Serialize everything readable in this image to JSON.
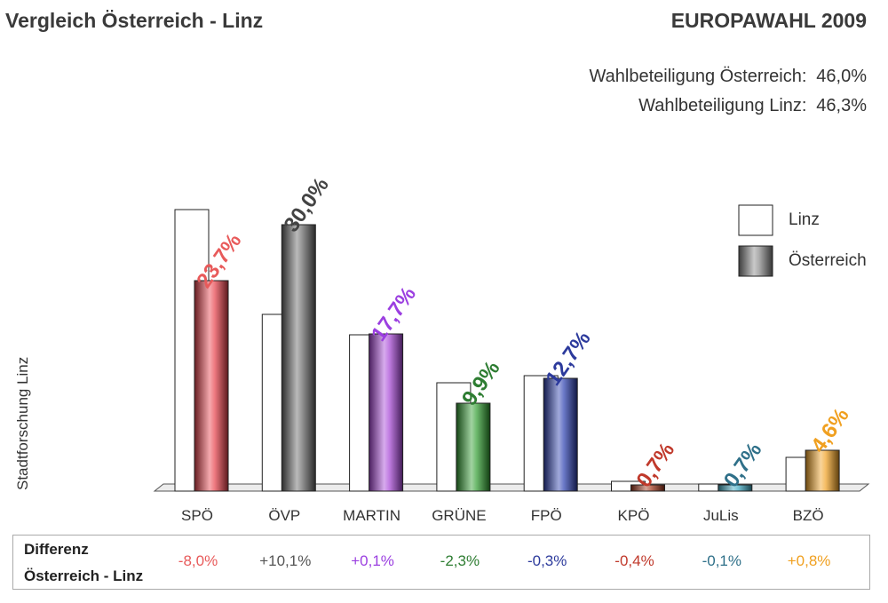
{
  "header": {
    "title_left": "Vergleich Österreich - Linz",
    "title_right": "EUROPAWAHL 2009"
  },
  "turnout": {
    "austria_label": "Wahlbeteiligung Österreich:",
    "austria_value": "46,0%",
    "linz_label": "Wahlbeteiligung Linz:",
    "linz_value": "46,3%"
  },
  "source_label": "Stadtforschung Linz",
  "legend": {
    "linz": "Linz",
    "austria": "Österreich"
  },
  "differences": {
    "label_line1": "Differenz",
    "label_line2": "Österreich - Linz",
    "values": [
      "-8,0%",
      "+10,1%",
      "+0,1%",
      "-2,3%",
      "-0,3%",
      "-0,4%",
      "-0,1%",
      "+0,8%"
    ]
  },
  "chart_data": {
    "type": "bar",
    "categories": [
      "SPÖ",
      "ÖVP",
      "MARTIN",
      "GRÜNE",
      "FPÖ",
      "KPÖ",
      "JuLis",
      "BZÖ"
    ],
    "series": [
      {
        "name": "Linz",
        "values": [
          31.7,
          19.9,
          17.6,
          12.2,
          13.0,
          1.1,
          0.8,
          3.8
        ]
      },
      {
        "name": "Österreich",
        "values": [
          23.7,
          30.0,
          17.7,
          9.9,
          12.7,
          0.7,
          0.7,
          4.6
        ]
      }
    ],
    "value_labels": [
      "23,7%",
      "30,0%",
      "17,7%",
      "9,9%",
      "12,7%",
      "0,7%",
      "0,7%",
      "4,6%"
    ],
    "colors": [
      "#e8404a",
      "#666666",
      "#a645d6",
      "#2e9c2e",
      "#2c3fb0",
      "#a0351a",
      "#3aa6c0",
      "#f0a020"
    ],
    "label_colors": [
      "#e85a5a",
      "#444444",
      "#9b3fe0",
      "#2e7d32",
      "#2c3a9c",
      "#c0392b",
      "#2f7089",
      "#f0a020"
    ],
    "diff_colors": [
      "#e85a5a",
      "#555555",
      "#9b3fe0",
      "#2e7d32",
      "#2c3a9c",
      "#c0392b",
      "#2f7089",
      "#f0a020"
    ],
    "ylim": [
      0,
      32
    ],
    "grid": false,
    "legend_position": "top-right"
  }
}
